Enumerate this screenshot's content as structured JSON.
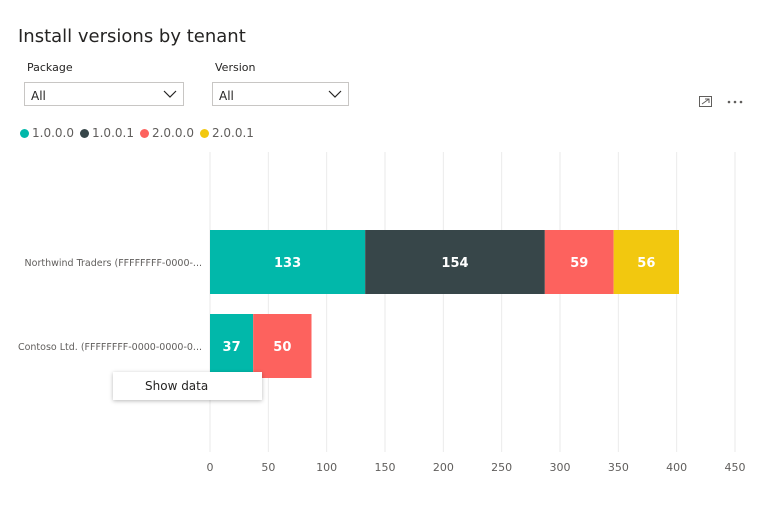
{
  "title": "Install versions by tenant",
  "slicers": [
    {
      "label": "Package",
      "value": "All"
    },
    {
      "label": "Version",
      "value": "All"
    }
  ],
  "icons": {
    "focus": "focus-mode-icon",
    "more": "more-options-icon"
  },
  "context_menu": {
    "item": "Show data"
  },
  "chart_data": {
    "type": "bar",
    "orientation": "horizontal",
    "stacked": true,
    "categories": [
      "Northwind Traders (FFFFFFFF-0000-...",
      "Contoso Ltd. (FFFFFFFF-0000-0000-0..."
    ],
    "series": [
      {
        "name": "1.0.0.0",
        "color": "#01b8aa",
        "values": [
          133,
          37
        ]
      },
      {
        "name": "1.0.0.1",
        "color": "#374649",
        "values": [
          154,
          0
        ]
      },
      {
        "name": "2.0.0.0",
        "color": "#fd625e",
        "values": [
          59,
          50
        ]
      },
      {
        "name": "2.0.0.1",
        "color": "#f2c80f",
        "values": [
          56,
          0
        ]
      }
    ],
    "xlim": [
      0,
      450
    ],
    "xticks": [
      0,
      50,
      100,
      150,
      200,
      250,
      300,
      350,
      400,
      450
    ],
    "grid": true,
    "legend": "top-left",
    "title": "Install versions by tenant"
  }
}
